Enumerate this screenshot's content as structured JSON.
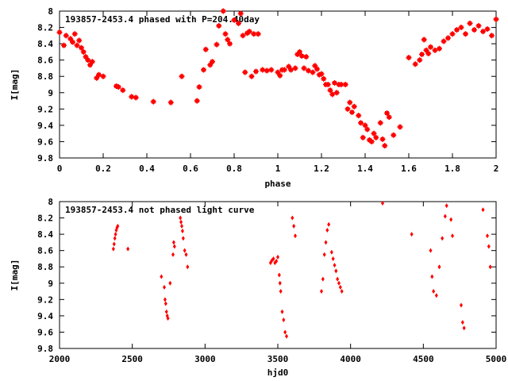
{
  "chart_data": [
    {
      "type": "scatter",
      "title": "193857-2453.4 phased with P=204.40day",
      "xlabel": "phase",
      "ylabel": "I[mag]",
      "xlim": [
        0,
        2
      ],
      "ylim": [
        9.8,
        8
      ],
      "y_inverted": true,
      "xticks": [
        "0",
        "0.2",
        "0.4",
        "0.6",
        "0.8",
        "1",
        "1.2",
        "1.4",
        "1.6",
        "1.8",
        "2"
      ],
      "xtick_values": [
        0,
        0.2,
        0.4,
        0.6,
        0.8,
        1.0,
        1.2,
        1.4,
        1.6,
        1.8,
        2.0
      ],
      "yticks": [
        "8",
        "8.2",
        "8.4",
        "8.6",
        "8.8",
        "9",
        "9.2",
        "9.4",
        "9.6",
        "9.8"
      ],
      "ytick_values": [
        8,
        8.2,
        8.4,
        8.6,
        8.8,
        9.0,
        9.2,
        9.4,
        9.6,
        9.8
      ],
      "grid": false,
      "marker_color": "#ff0000",
      "series": [
        {
          "x": [
            0.0,
            0.02,
            0.03,
            0.05,
            0.06,
            0.07,
            0.08,
            0.09,
            0.1,
            0.11,
            0.12,
            0.13,
            0.14,
            0.15,
            0.17,
            0.18,
            0.2,
            0.26,
            0.27,
            0.29,
            0.33,
            0.35,
            0.43,
            0.51,
            0.56,
            0.63,
            0.64,
            0.66,
            0.67,
            0.69,
            0.7,
            0.72,
            0.73,
            0.75,
            0.76,
            0.77,
            0.78,
            0.8,
            0.82,
            0.83,
            0.84,
            0.85,
            0.86,
            0.87,
            0.88,
            0.89,
            0.9,
            0.91,
            0.93,
            0.95,
            0.97,
            1.0,
            1.01,
            1.02,
            1.03,
            1.05,
            1.06,
            1.08,
            1.09,
            1.1,
            1.11,
            1.12,
            1.13,
            1.14,
            1.16,
            1.17,
            1.18,
            1.19,
            1.2,
            1.21,
            1.22,
            1.23,
            1.24,
            1.25,
            1.26,
            1.27,
            1.28,
            1.29,
            1.31,
            1.32,
            1.33,
            1.34,
            1.35,
            1.37,
            1.38,
            1.39,
            1.4,
            1.41,
            1.42,
            1.43,
            1.44,
            1.45,
            1.47,
            1.48,
            1.49,
            1.5,
            1.51,
            1.53,
            1.56,
            1.6,
            1.63,
            1.65,
            1.66,
            1.67,
            1.68,
            1.69,
            1.7,
            1.72,
            1.74,
            1.76,
            1.78,
            1.8,
            1.82,
            1.84,
            1.86,
            1.88,
            1.9,
            1.92,
            1.94,
            1.96,
            1.98,
            2.0
          ],
          "y": [
            8.26,
            8.42,
            8.3,
            8.34,
            8.38,
            8.28,
            8.42,
            8.36,
            8.45,
            8.5,
            8.56,
            8.6,
            8.66,
            8.62,
            8.82,
            8.78,
            8.8,
            8.92,
            8.93,
            8.97,
            9.05,
            9.06,
            9.11,
            9.12,
            8.8,
            9.1,
            8.93,
            8.72,
            8.47,
            8.66,
            8.62,
            8.41,
            8.18,
            8.0,
            8.28,
            8.35,
            8.4,
            8.11,
            8.15,
            8.03,
            8.3,
            8.75,
            8.27,
            8.25,
            8.8,
            8.28,
            8.74,
            8.28,
            8.72,
            8.73,
            8.72,
            8.75,
            8.79,
            8.72,
            8.72,
            8.68,
            8.72,
            8.7,
            8.53,
            8.5,
            8.55,
            8.7,
            8.56,
            8.73,
            8.75,
            8.67,
            8.71,
            8.78,
            8.77,
            8.83,
            8.9,
            8.9,
            8.97,
            9.02,
            8.88,
            9.0,
            8.9,
            8.9,
            8.9,
            9.2,
            9.12,
            9.24,
            9.17,
            9.28,
            9.37,
            9.55,
            9.4,
            9.45,
            9.58,
            9.6,
            9.5,
            9.55,
            9.37,
            9.57,
            9.65,
            9.25,
            9.3,
            9.52,
            9.42,
            8.57,
            8.65,
            8.6,
            8.53,
            8.35,
            8.48,
            8.52,
            8.44,
            8.48,
            8.46,
            8.37,
            8.33,
            8.28,
            8.23,
            8.2,
            8.28,
            8.15,
            8.23,
            8.18,
            8.25,
            8.22,
            8.3,
            8.1
          ]
        }
      ]
    },
    {
      "type": "scatter",
      "title": "193857-2453.4 not phased light curve",
      "xlabel": "hjd0",
      "ylabel": "I[mag]",
      "xlim": [
        2000,
        5000
      ],
      "ylim": [
        9.8,
        8
      ],
      "y_inverted": true,
      "xticks": [
        "2000",
        "2500",
        "3000",
        "3500",
        "4000",
        "4500",
        "5000"
      ],
      "xtick_values": [
        2000,
        2500,
        3000,
        3500,
        4000,
        4500,
        5000
      ],
      "yticks": [
        "8",
        "8.2",
        "8.4",
        "8.6",
        "8.8",
        "9",
        "9.2",
        "9.4",
        "9.6",
        "9.8"
      ],
      "ytick_values": [
        8,
        8.2,
        8.4,
        8.6,
        8.8,
        9.0,
        9.2,
        9.4,
        9.6,
        9.8
      ],
      "grid": false,
      "marker_color": "#ff0000",
      "series": [
        {
          "x": [
            2370,
            2375,
            2380,
            2385,
            2390,
            2395,
            2400,
            2470,
            2700,
            2720,
            2725,
            2730,
            2735,
            2740,
            2745,
            2760,
            2780,
            2785,
            2790,
            2830,
            2835,
            2840,
            2845,
            2850,
            2860,
            2870,
            2880,
            3450,
            3460,
            3470,
            3480,
            3490,
            3500,
            3510,
            3515,
            3520,
            3530,
            3540,
            3550,
            3560,
            3600,
            3610,
            3620,
            3800,
            3810,
            3820,
            3830,
            3840,
            3850,
            3870,
            3880,
            3890,
            3900,
            3910,
            3920,
            3930,
            3940,
            4220,
            4420,
            4550,
            4560,
            4570,
            4590,
            4610,
            4630,
            4650,
            4660,
            4690,
            4700,
            4760,
            4770,
            4780,
            4910,
            4940,
            4950,
            4960
          ],
          "y": [
            8.58,
            8.52,
            8.45,
            8.4,
            8.35,
            8.32,
            8.3,
            8.58,
            8.92,
            9.05,
            9.2,
            9.25,
            9.35,
            9.4,
            9.43,
            9.0,
            8.65,
            8.5,
            8.55,
            8.2,
            8.25,
            8.3,
            8.36,
            8.45,
            8.6,
            8.65,
            8.8,
            8.75,
            8.72,
            8.7,
            8.75,
            8.73,
            8.68,
            8.9,
            9.0,
            9.1,
            9.35,
            9.45,
            9.6,
            9.65,
            8.2,
            8.3,
            8.42,
            9.1,
            8.95,
            8.65,
            8.5,
            8.35,
            8.28,
            8.62,
            8.7,
            8.78,
            8.85,
            8.95,
            9.0,
            9.05,
            9.1,
            8.02,
            8.4,
            8.6,
            8.92,
            9.1,
            9.15,
            8.8,
            8.45,
            8.18,
            8.05,
            8.22,
            8.42,
            9.27,
            9.48,
            9.55,
            8.1,
            8.42,
            8.55,
            8.8
          ]
        }
      ]
    }
  ]
}
